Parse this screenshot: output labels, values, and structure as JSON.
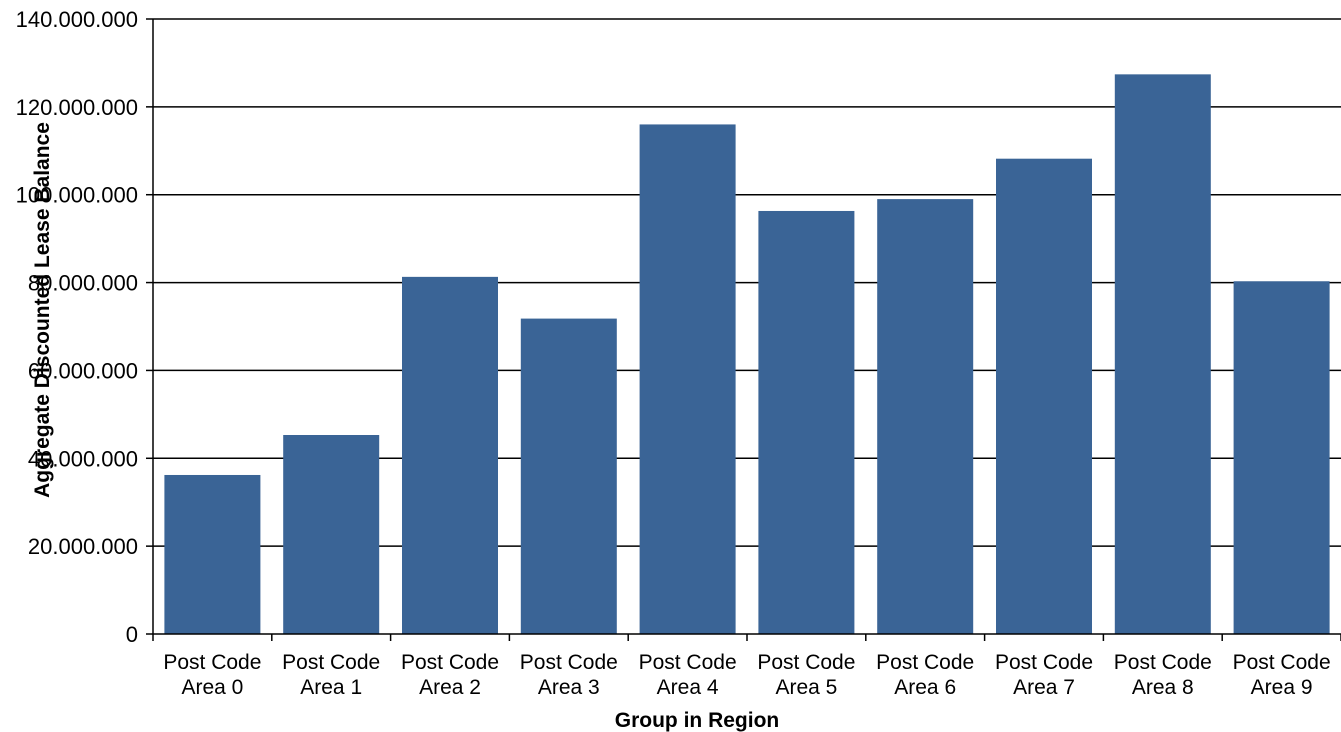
{
  "chart_data": {
    "type": "bar",
    "xlabel": "Group in Region",
    "ylabel": "Aggregate Discounted Lease Balance",
    "categories": [
      [
        "Post Code",
        "Area 0"
      ],
      [
        "Post Code",
        "Area 1"
      ],
      [
        "Post Code",
        "Area 2"
      ],
      [
        "Post Code",
        "Area 3"
      ],
      [
        "Post Code",
        "Area 4"
      ],
      [
        "Post Code",
        "Area 5"
      ],
      [
        "Post Code",
        "Area 6"
      ],
      [
        "Post Code",
        "Area 7"
      ],
      [
        "Post Code",
        "Area 8"
      ],
      [
        "Post Code",
        "Area 9"
      ]
    ],
    "values": [
      36200000,
      45300000,
      81300000,
      71800000,
      116000000,
      96300000,
      99000000,
      108200000,
      127400000,
      80300000
    ],
    "ylim": [
      0,
      140000000
    ],
    "yticks": [
      0,
      20000000,
      40000000,
      60000000,
      80000000,
      100000000,
      120000000,
      140000000
    ],
    "ytick_labels": [
      "0",
      "20.000.000",
      "40.000.000",
      "60.000.000",
      "80.000.000",
      "100.000.000",
      "120.000.000",
      "140.000.000"
    ],
    "grid": true,
    "legend": false,
    "bar_color": "#3a6496"
  }
}
